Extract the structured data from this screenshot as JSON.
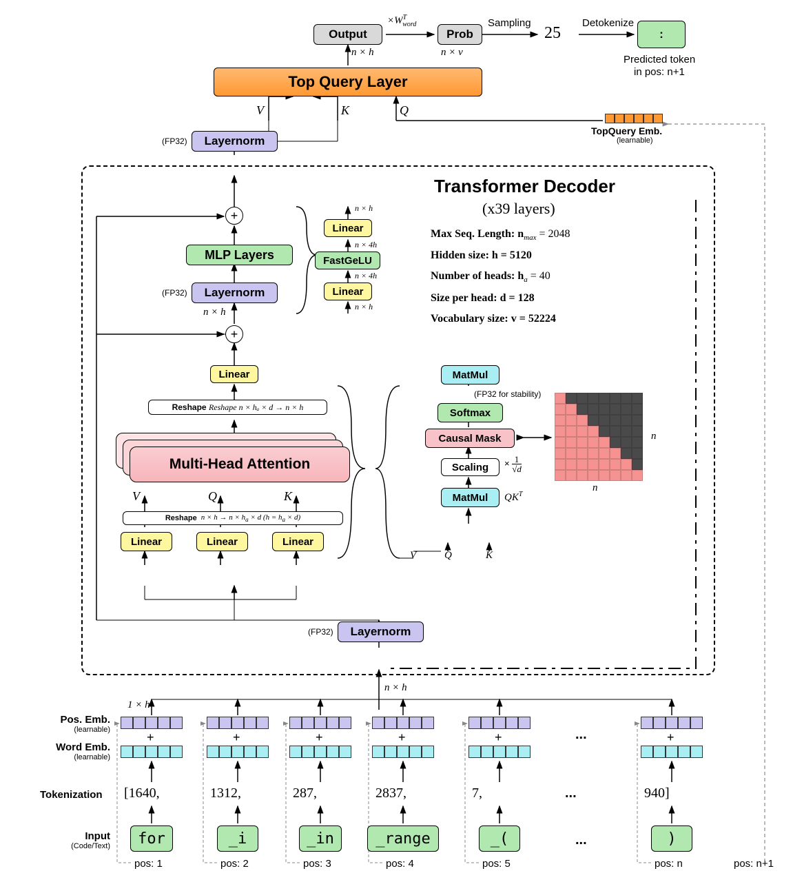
{
  "colors": {
    "grey": "#d9d9d9",
    "orange": "#ff9933",
    "orange_light": "#ffb870",
    "purple": "#cac4f0",
    "green": "#b0e8b0",
    "yellow": "#fff7a0",
    "pink": "#f7c3c8",
    "cyan": "#a8eef2",
    "mask_dark": "#4a4a4a",
    "mask_light": "#f59393"
  },
  "top": {
    "output": "Output",
    "w_word": "×W",
    "w_word_sup": "T",
    "w_word_sub": "word",
    "prob": "Prob",
    "nxh": "n × h",
    "nxv": "n × v",
    "sampling": "Sampling",
    "sampled": "25",
    "detokenize": "Detokenize",
    "predicted": "Predicted token",
    "predicted2": "in pos: n+1",
    "colon": ":",
    "top_query": "Top Query Layer",
    "V": "V",
    "K": "K",
    "Q": "Q",
    "topquery_emb": "TopQuery Emb.",
    "learnable": "(learnable)",
    "fp32": "(FP32)",
    "layernorm": "Layernorm"
  },
  "decoder": {
    "title": "Transformer Decoder",
    "subtitle": "(x39 layers)",
    "params": [
      "Max Seq. Length: n",
      "Hidden size: h = 5120",
      "Number of heads: h",
      "Size per head: d = 128",
      "Vocabulary size: v = 52224"
    ],
    "param0_sub": "max",
    "param0_val": " = 2048",
    "param2_sub": "a",
    "param2_val": " = 40",
    "mlp": "MLP Layers",
    "layernorm": "Layernorm",
    "fp32": "(FP32)",
    "nxh": "n × h",
    "nx4h": "n × 4h",
    "linear": "Linear",
    "fastgelu": "FastGeLU",
    "reshape1": "Reshape  n × hₐ × d → n × h",
    "mha": "Multi-Head Attention",
    "V": "V",
    "Q": "Q",
    "K": "K",
    "reshape2": "Reshape   n × h → n × hₐ × d (h = hₐ × d)",
    "matmul": "MatMul",
    "fp32_stab": "(FP32 for stability)",
    "softmax": "Softmax",
    "causal": "Causal Mask",
    "scaling": "Scaling",
    "scale_factor_top": "1",
    "scale_factor_bot": "√d",
    "qkt": "QK",
    "qkt_sup": "T",
    "n": "n"
  },
  "bottom": {
    "nxh": "n × h",
    "onexh": "1 × h",
    "pos_emb": "Pos. Emb.",
    "word_emb": "Word Emb.",
    "learnable": "(learnable)",
    "tokenization": "Tokenization",
    "input": "Input",
    "input_sub": "(Code/Text)",
    "tokens": [
      "for",
      "_i",
      "_in",
      "_range",
      "_(",
      "...",
      ")"
    ],
    "token_ids": [
      "[1640,",
      "1312,",
      "287,",
      "2837,",
      "7,",
      "...",
      "940]"
    ],
    "positions": [
      "pos: 1",
      "pos: 2",
      "pos: 3",
      "pos: 4",
      "pos: 5",
      "",
      "pos: n"
    ],
    "pos_np1": "pos: n+1",
    "ellipsis": "..."
  }
}
